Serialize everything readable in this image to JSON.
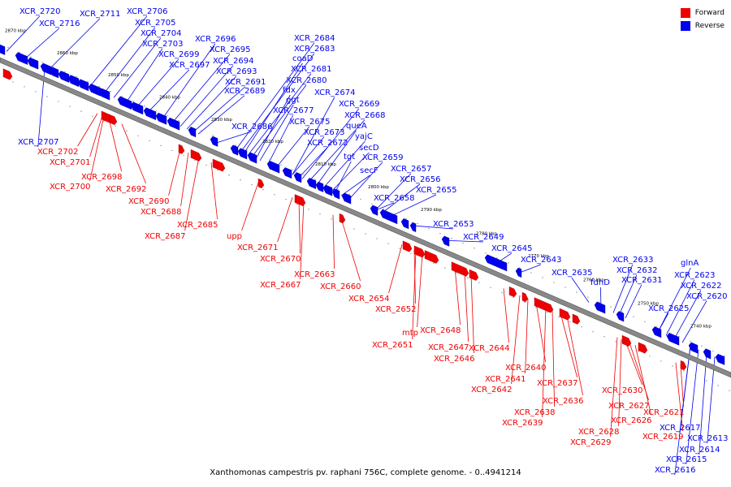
{
  "legend": {
    "forward_label": "Forward",
    "reverse_label": "Reverse",
    "forward_color": "#ff0000",
    "reverse_color": "#0000ff"
  },
  "caption": "Xanthomonas campestris pv. raphani 756C, complete genome. - 0..4941214",
  "kbp_ticks": [
    "2870 kbp",
    "2860 kbp",
    "2850 kbp",
    "2840 kbp",
    "2830 kbp",
    "2820 kbp",
    "2810 kbp",
    "2800 kbp",
    "2790 kbp",
    "2780 kbp",
    "2770 kbp",
    "2760 kbp",
    "2750 kbp",
    "2740 kbp"
  ],
  "reverse_genes": [
    "XCR_2720",
    "XCR_2716",
    "XCR_2711",
    "XCR_2706",
    "XCR_2705",
    "XCR_2704",
    "XCR_2703",
    "XCR_2699",
    "XCR_2697",
    "XCR_2696",
    "XCR_2695",
    "XCR_2694",
    "XCR_2693",
    "XCR_2691",
    "XCR_2689",
    "XCR_2684",
    "XCR_2683",
    "coaD",
    "XCR_2681",
    "XCR_2680",
    "fdx",
    "ggt",
    "XCR_2677",
    "XCR_2675",
    "XCR_2674",
    "XCR_2669",
    "XCR_2668",
    "queA",
    "yajC",
    "secD",
    "secF",
    "XCR_2673",
    "XCR_2672",
    "tgt",
    "XCR_2659",
    "XCR_2657",
    "XCR_2656",
    "XCR_2655",
    "XCR_2658",
    "XCR_2653",
    "XCR_2649",
    "XCR_2645",
    "XCR_2643",
    "XCR_2635",
    "fdhD",
    "XCR_2633",
    "XCR_2632",
    "XCR_2631",
    "glnA",
    "XCR_2623",
    "XCR_2622",
    "XCR_2620",
    "XCR_2625",
    "XCR_2686",
    "XCR_2707",
    "XCR_2617",
    "XCR_2613",
    "XCR_2614",
    "XCR_2615",
    "XCR_2616"
  ],
  "forward_genes": [
    "XCR_2702",
    "XCR_2701",
    "XCR_2698",
    "XCR_2700",
    "XCR_2692",
    "XCR_2690",
    "XCR_2688",
    "XCR_2685",
    "XCR_2687",
    "upp",
    "XCR_2671",
    "XCR_2670",
    "XCR_2667",
    "XCR_2663",
    "XCR_2660",
    "XCR_2654",
    "XCR_2652",
    "mtp",
    "XCR_2651",
    "XCR_2648",
    "XCR_2647",
    "XCR_2646",
    "XCR_2644",
    "XCR_2640",
    "XCR_2641",
    "XCR_2642",
    "XCR_2637",
    "XCR_2636",
    "XCR_2638",
    "XCR_2639",
    "XCR_2630",
    "XCR_2627",
    "XCR_2626",
    "XCR_2628",
    "XCR_2629",
    "XCR_2621",
    "XCR_2619"
  ]
}
